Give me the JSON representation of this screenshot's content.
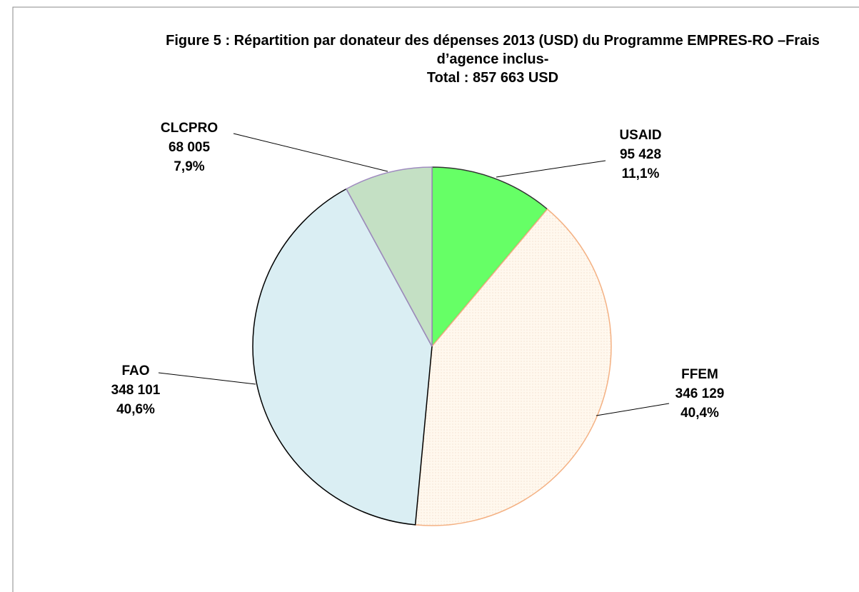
{
  "chart_data": {
    "type": "pie",
    "title": "Figure 5 : Répartition par donateur des dépenses 2013 (USD) du Programme EMPRES-RO –Frais d’agence inclus-",
    "subtitle": "Total : 857 663 USD",
    "categories": [
      "USAID",
      "FFEM",
      "FAO",
      "CLCPRO"
    ],
    "values": [
      95428,
      346129,
      348101,
      68005
    ],
    "value_labels": [
      "95 428",
      "346 129",
      "348 101",
      "68 005"
    ],
    "percents": [
      11.1,
      40.4,
      40.6,
      7.9
    ],
    "percent_labels": [
      "11,1%",
      "40,4%",
      "40,6%",
      "7,9%"
    ],
    "colors": [
      "#66ff66",
      "#fff6ea",
      "#daeef3",
      "#c4e0c4"
    ],
    "edge_colors": [
      "#333333",
      "#f4b183",
      "#000000",
      "#a08cc0"
    ]
  }
}
